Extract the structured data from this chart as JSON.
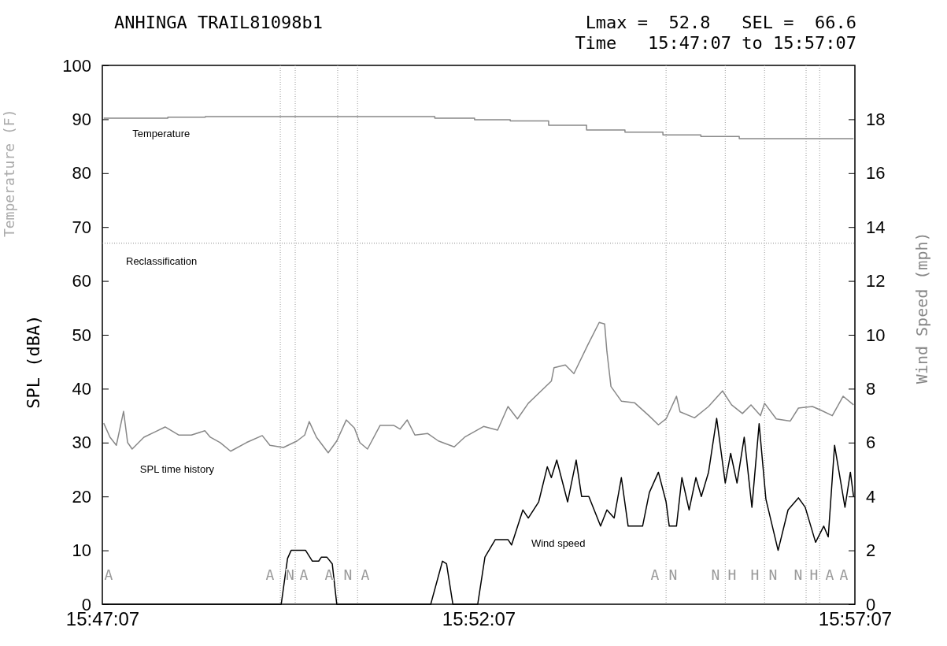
{
  "chart_data": {
    "type": "line",
    "title": "ANHINGA TRAIL81098b1",
    "subtitle": "Lmax =  52.8   SEL =  66.6",
    "ylabel": "SPL (dBA)",
    "y2label": "Wind Speed (mph)",
    "annotations": [
      "Time   15:47:07 to 15:57:07",
      "Temperature (F)",
      "A",
      "A",
      "N",
      "A",
      "A",
      "N",
      "A",
      "A",
      "N",
      "N",
      "H",
      "H",
      "N",
      "N",
      "H",
      "A",
      "A"
    ],
    "xlim": [
      15.7853,
      15.9519
    ],
    "xticks": [
      {
        "value": 15.7853,
        "label": "15:47:07"
      },
      {
        "value": 15.8686,
        "label": "15:52:07"
      },
      {
        "value": 15.9519,
        "label": "15:57:07"
      }
    ],
    "ylim": [
      0,
      100
    ],
    "yticks": [
      0,
      10,
      20,
      30,
      40,
      50,
      60,
      70,
      80,
      90,
      100
    ],
    "y2lim": [
      0,
      20
    ],
    "y2ticks": [
      0,
      2,
      4,
      6,
      8,
      10,
      12,
      14,
      16,
      18
    ],
    "ref_lines": [
      {
        "axis": "y",
        "value": 67,
        "label": "Reclassification",
        "color": "#888888",
        "line_style": "dotted"
      },
      {
        "axis": "x",
        "value": 15.8247,
        "label": null,
        "color": "#999999",
        "line_style": "dotted"
      },
      {
        "axis": "x",
        "value": 15.828,
        "label": null,
        "color": "#999999",
        "line_style": "dotted"
      },
      {
        "axis": "x",
        "value": 15.8374,
        "label": null,
        "color": "#999999",
        "line_style": "dotted"
      },
      {
        "axis": "x",
        "value": 15.8418,
        "label": null,
        "color": "#999999",
        "line_style": "dotted"
      },
      {
        "axis": "x",
        "value": 15.9101,
        "label": null,
        "color": "#999999",
        "line_style": "dotted"
      },
      {
        "axis": "x",
        "value": 15.9232,
        "label": null,
        "color": "#999999",
        "line_style": "dotted"
      },
      {
        "axis": "x",
        "value": 15.9319,
        "label": null,
        "color": "#999999",
        "line_style": "dotted"
      },
      {
        "axis": "x",
        "value": 15.9411,
        "label": null,
        "color": "#999999",
        "line_style": "dotted"
      },
      {
        "axis": "x",
        "value": 15.9441,
        "label": null,
        "color": "#999999",
        "line_style": "dotted"
      }
    ],
    "series": [
      {
        "name": "Temperature",
        "type": "step",
        "color": "#888888",
        "x": [
          15.7856,
          15.7998,
          15.8081,
          15.843,
          15.8589,
          15.8677,
          15.8756,
          15.8841,
          15.8925,
          15.901,
          15.9094,
          15.9178,
          15.9263,
          15.9516
        ],
        "values": [
          90.2,
          90.4,
          90.5,
          90.5,
          90.2,
          89.9,
          89.7,
          88.9,
          88.0,
          87.6,
          87.1,
          86.8,
          86.4,
          86.4
        ]
      },
      {
        "name": "SPL time history",
        "color": "#888888",
        "x": [
          15.7856,
          15.787,
          15.7884,
          15.79,
          15.7909,
          15.7919,
          15.7945,
          15.797,
          15.7992,
          15.8022,
          15.805,
          15.808,
          15.8092,
          15.8114,
          15.8137,
          15.8172,
          15.8207,
          15.8224,
          15.8254,
          15.8284,
          15.8301,
          15.8311,
          15.8327,
          15.8353,
          15.8372,
          15.8393,
          15.8411,
          15.8423,
          15.844,
          15.8468,
          15.8498,
          15.8512,
          15.8528,
          15.8545,
          15.8573,
          15.8597,
          15.8632,
          15.8655,
          15.8697,
          15.8728,
          15.8751,
          15.8772,
          15.8796,
          15.8847,
          15.8853,
          15.8878,
          15.8897,
          15.8927,
          15.8953,
          15.8965,
          15.897,
          15.8979,
          15.9002,
          15.9031,
          15.9063,
          15.9084,
          15.9101,
          15.9124,
          15.9132,
          15.9164,
          15.9195,
          15.9226,
          15.9246,
          15.927,
          15.9289,
          15.931,
          15.9319,
          15.9345,
          15.9376,
          15.9394,
          15.9425,
          15.9444,
          15.9469,
          15.9493,
          15.9516
        ],
        "values": [
          33.6,
          31.0,
          29.5,
          35.8,
          30.0,
          28.8,
          31.0,
          32.0,
          32.9,
          31.4,
          31.4,
          32.2,
          31.0,
          30.0,
          28.4,
          30.0,
          31.3,
          29.5,
          29.1,
          30.3,
          31.4,
          33.9,
          31.0,
          28.1,
          30.3,
          34.2,
          32.7,
          30.0,
          28.8,
          33.2,
          33.2,
          32.5,
          34.2,
          31.4,
          31.7,
          30.3,
          29.2,
          31.0,
          33.0,
          32.3,
          36.7,
          34.4,
          37.3,
          41.4,
          43.9,
          44.4,
          42.8,
          48.0,
          52.3,
          52.0,
          46.9,
          40.4,
          37.7,
          37.4,
          35.0,
          33.3,
          34.4,
          38.6,
          35.7,
          34.6,
          36.7,
          39.6,
          37.0,
          35.4,
          37.0,
          35.0,
          37.3,
          34.4,
          34.0,
          36.4,
          36.7,
          36.0,
          35.0,
          38.6,
          37.0
        ]
      },
      {
        "name": "Wind speed",
        "axis": "y2",
        "color": "#000000",
        "x": [
          15.7853,
          15.8249,
          15.8263,
          15.8271,
          15.8303,
          15.8318,
          15.8332,
          15.8338,
          15.835,
          15.8362,
          15.8372,
          15.858,
          15.8606,
          15.8615,
          15.8629,
          15.8684,
          15.87,
          15.8723,
          15.8751,
          15.8759,
          15.8784,
          15.8796,
          15.8819,
          15.8838,
          15.8847,
          15.8859,
          15.8883,
          15.8902,
          15.8914,
          15.893,
          15.8956,
          15.897,
          15.8986,
          15.9002,
          15.9017,
          15.9049,
          15.9064,
          15.9084,
          15.9101,
          15.9108,
          15.9124,
          15.9136,
          15.9152,
          15.9167,
          15.9179,
          15.9195,
          15.9213,
          15.9232,
          15.9244,
          15.9258,
          15.9274,
          15.9291,
          15.9307,
          15.9322,
          15.9349,
          15.9371,
          15.9394,
          15.9409,
          15.9432,
          15.945,
          15.946,
          15.9474,
          15.9497,
          15.9509,
          15.9516
        ],
        "values": [
          0,
          0,
          1.7,
          2.0,
          2.0,
          1.6,
          1.6,
          1.75,
          1.75,
          1.5,
          0,
          0,
          1.6,
          1.5,
          0,
          0,
          1.75,
          2.4,
          2.4,
          2.2,
          3.5,
          3.2,
          3.8,
          5.1,
          4.7,
          5.35,
          3.8,
          5.35,
          4.0,
          4.0,
          2.9,
          3.5,
          3.2,
          4.7,
          2.9,
          2.9,
          4.15,
          4.9,
          3.8,
          2.9,
          2.9,
          4.7,
          3.5,
          4.7,
          4.0,
          4.9,
          6.9,
          4.5,
          5.6,
          4.5,
          6.2,
          3.6,
          6.7,
          3.9,
          2.0,
          3.5,
          3.95,
          3.6,
          2.3,
          2.9,
          2.5,
          5.9,
          3.6,
          4.9,
          4.0
        ]
      }
    ]
  }
}
